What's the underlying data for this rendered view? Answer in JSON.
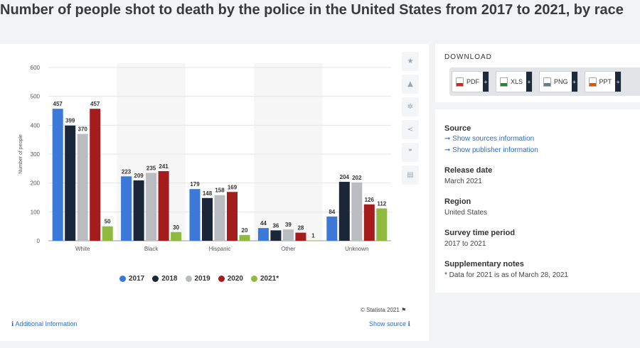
{
  "page": {
    "title": "Number of people shot to death by the police in the United States from 2017 to 2021, by race"
  },
  "chart_data": {
    "type": "bar",
    "title": "",
    "xlabel": "",
    "ylabel": "Number of people",
    "ylim": [
      0,
      600
    ],
    "yticks": [
      0,
      100,
      200,
      300,
      400,
      500,
      600
    ],
    "grid": true,
    "legend_position": "bottom",
    "categories": [
      "White",
      "Black",
      "Hispanic",
      "Other",
      "Unknown"
    ],
    "series": [
      {
        "name": "2017",
        "color": "#3c78d8",
        "values": [
          457,
          223,
          179,
          44,
          84
        ]
      },
      {
        "name": "2018",
        "color": "#1b2738",
        "values": [
          399,
          209,
          148,
          36,
          204
        ]
      },
      {
        "name": "2019",
        "color": "#b9bcc1",
        "values": [
          370,
          235,
          158,
          39,
          202
        ]
      },
      {
        "name": "2020",
        "color": "#a51c1c",
        "values": [
          457,
          241,
          169,
          28,
          126
        ]
      },
      {
        "name": "2021*",
        "color": "#8eba3e",
        "values": [
          50,
          30,
          20,
          1,
          112
        ]
      }
    ]
  },
  "chart_footer": {
    "copyright": "© Statista 2021",
    "additional_info": "Additional Information",
    "show_source": "Show source"
  },
  "toolbar": {
    "icons": [
      "star-icon",
      "bell-icon",
      "gear-icon",
      "share-icon",
      "quote-icon",
      "print-icon"
    ]
  },
  "download": {
    "label": "DOWNLOAD",
    "buttons": [
      "PDF",
      "XLS",
      "PNG",
      "PPT"
    ],
    "plus": "+"
  },
  "info": {
    "source_heading": "Source",
    "source_link": "Show sources information",
    "publisher_link": "Show publisher information",
    "release_heading": "Release date",
    "release_value": "March 2021",
    "region_heading": "Region",
    "region_value": "United States",
    "period_heading": "Survey time period",
    "period_value": "2017 to 2021",
    "notes_heading": "Supplementary notes",
    "notes_value": "* Data for 2021 is as of March 28, 2021"
  }
}
